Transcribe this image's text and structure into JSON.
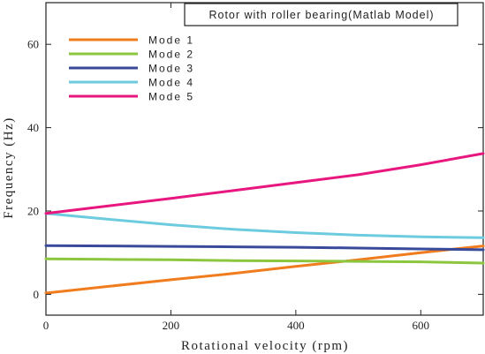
{
  "chart_data": {
    "type": "line",
    "title": "Rotor with roller bearing(Matlab Model)",
    "xlabel": "Rotational velocity (rpm)",
    "ylabel": "Frequency (Hz)",
    "xlim": [
      0,
      700
    ],
    "ylim": [
      -5,
      70
    ],
    "xticks": [
      0,
      200,
      400,
      600
    ],
    "yticks": [
      0,
      20,
      40,
      60
    ],
    "grid": false,
    "legend_position": "top-left",
    "title_box_position": "top-right",
    "series": [
      {
        "name": "Mode 1",
        "color": "#f07c1e",
        "x": [
          0,
          100,
          200,
          300,
          400,
          500,
          600,
          700
        ],
        "y": [
          0.3,
          1.9,
          3.5,
          5.0,
          6.7,
          8.3,
          10.0,
          11.6
        ]
      },
      {
        "name": "Mode 2",
        "color": "#8cc63e",
        "x": [
          0,
          100,
          200,
          300,
          400,
          500,
          600,
          700
        ],
        "y": [
          8.5,
          8.4,
          8.3,
          8.1,
          8.0,
          7.9,
          7.8,
          7.5
        ]
      },
      {
        "name": "Mode 3",
        "color": "#3a4a9a",
        "x": [
          0,
          100,
          200,
          300,
          400,
          500,
          600,
          700
        ],
        "y": [
          11.7,
          11.6,
          11.5,
          11.4,
          11.3,
          11.1,
          10.9,
          10.7
        ]
      },
      {
        "name": "Mode 4",
        "color": "#6ccbde",
        "x": [
          0,
          100,
          200,
          300,
          400,
          500,
          600,
          700
        ],
        "y": [
          19.4,
          18.0,
          16.7,
          15.6,
          14.8,
          14.2,
          13.8,
          13.6
        ]
      },
      {
        "name": "Mode 5",
        "color": "#e8177f",
        "x": [
          0,
          100,
          200,
          300,
          400,
          500,
          600,
          700
        ],
        "y": [
          19.4,
          21.2,
          23.0,
          24.9,
          26.8,
          28.7,
          31.1,
          33.8
        ]
      }
    ]
  }
}
